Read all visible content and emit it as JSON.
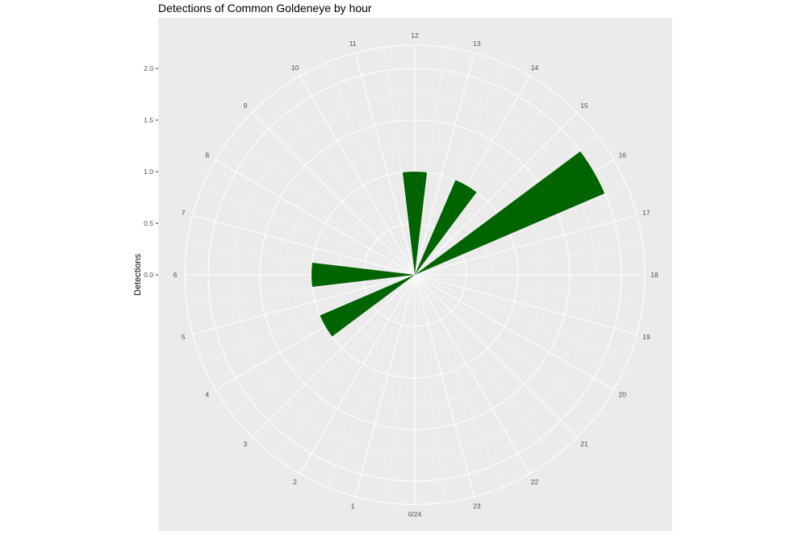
{
  "chart_data": {
    "type": "bar",
    "coord": "polar",
    "title": "Detections of Common Goldeneye by hour",
    "xlabel": "",
    "ylabel": "Detections",
    "categories": [
      "0/24",
      "1",
      "2",
      "3",
      "4",
      "5",
      "6",
      "7",
      "8",
      "9",
      "10",
      "11",
      "12",
      "13",
      "14",
      "15",
      "16",
      "17",
      "18",
      "19",
      "20",
      "21",
      "22",
      "23"
    ],
    "values": [
      0,
      0,
      0,
      0,
      1,
      0,
      1,
      0,
      0,
      0,
      0,
      0,
      1,
      0,
      1,
      0,
      2,
      0,
      0,
      0,
      0,
      0,
      0,
      0
    ],
    "y_ticks": [
      "0.0",
      "0.5",
      "1.0",
      "1.5",
      "2.0"
    ],
    "ylim": [
      0,
      2.25
    ],
    "grid": true,
    "colors": {
      "bar": "#006400",
      "panel": "#ebebeb",
      "grid": "#ffffff"
    }
  }
}
